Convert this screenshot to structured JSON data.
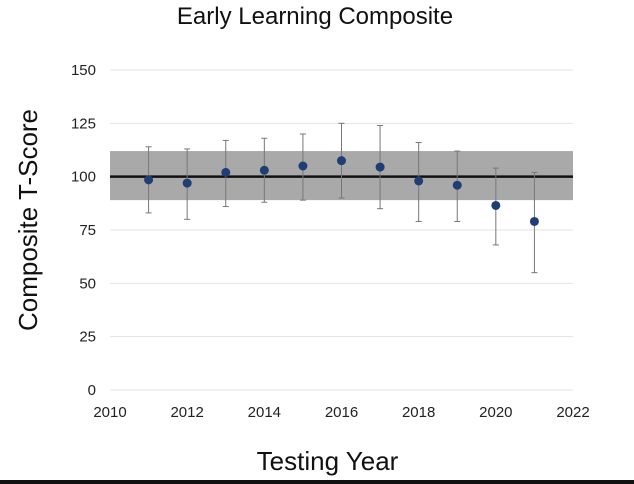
{
  "chart_data": {
    "type": "scatter",
    "title": "Early Learning Composite",
    "xlabel": "Testing Year",
    "ylabel": "Composite T-Score",
    "xlim": [
      2010,
      2022
    ],
    "ylim": [
      0,
      150
    ],
    "xticks": [
      2010,
      2012,
      2014,
      2016,
      2018,
      2020,
      2022
    ],
    "yticks": [
      0,
      25,
      50,
      75,
      100,
      125,
      150
    ],
    "grid": true,
    "reference_line": 100,
    "reference_band": [
      89,
      112
    ],
    "series": [
      {
        "x": [
          2011,
          2012,
          2013,
          2014,
          2015,
          2016,
          2017,
          2018,
          2019,
          2020,
          2021
        ],
        "y": [
          98.5,
          97,
          102,
          103,
          105,
          107.5,
          104.5,
          98,
          96,
          86.5,
          79
        ],
        "error_low": [
          83,
          80,
          86,
          88,
          89,
          90,
          85,
          79,
          79,
          68,
          55
        ],
        "error_high": [
          114,
          113,
          117,
          118,
          120,
          125,
          124,
          116,
          112,
          104,
          102
        ]
      }
    ],
    "colors": {
      "point": "#1f3e73",
      "band": "#a9a9a9",
      "reference": "#111111",
      "errorbar": "#777777",
      "grid": "#e3e3e3"
    }
  }
}
